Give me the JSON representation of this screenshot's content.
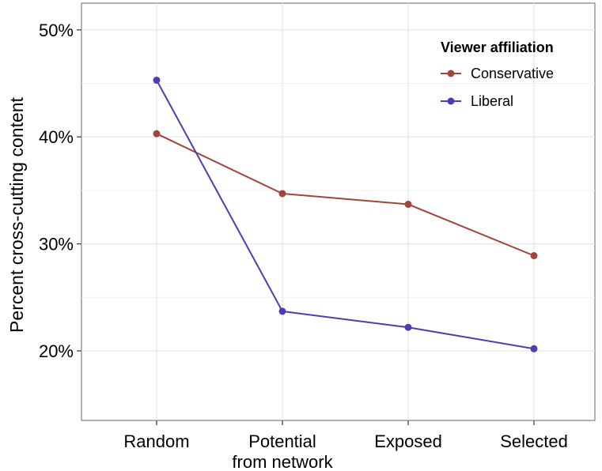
{
  "chart_data": {
    "type": "line",
    "categories": [
      "Random",
      "Potential\nfrom network",
      "Exposed",
      "Selected"
    ],
    "series": [
      {
        "name": "Conservative",
        "values": [
          40.3,
          34.7,
          33.7,
          28.9
        ],
        "color": "#a0463a"
      },
      {
        "name": "Liberal",
        "values": [
          45.3,
          23.7,
          22.2,
          20.2
        ],
        "color": "#4a3fb0"
      }
    ],
    "ylabel": "Percent cross-cutting content",
    "xlabel": "",
    "yticks": [
      20,
      30,
      40,
      50
    ],
    "ytick_labels": [
      "20%",
      "30%",
      "40%",
      "50%"
    ],
    "ylim": [
      13.5,
      52.5
    ],
    "grid": true,
    "legend": {
      "title": "Viewer affiliation",
      "position": "top-right"
    }
  }
}
